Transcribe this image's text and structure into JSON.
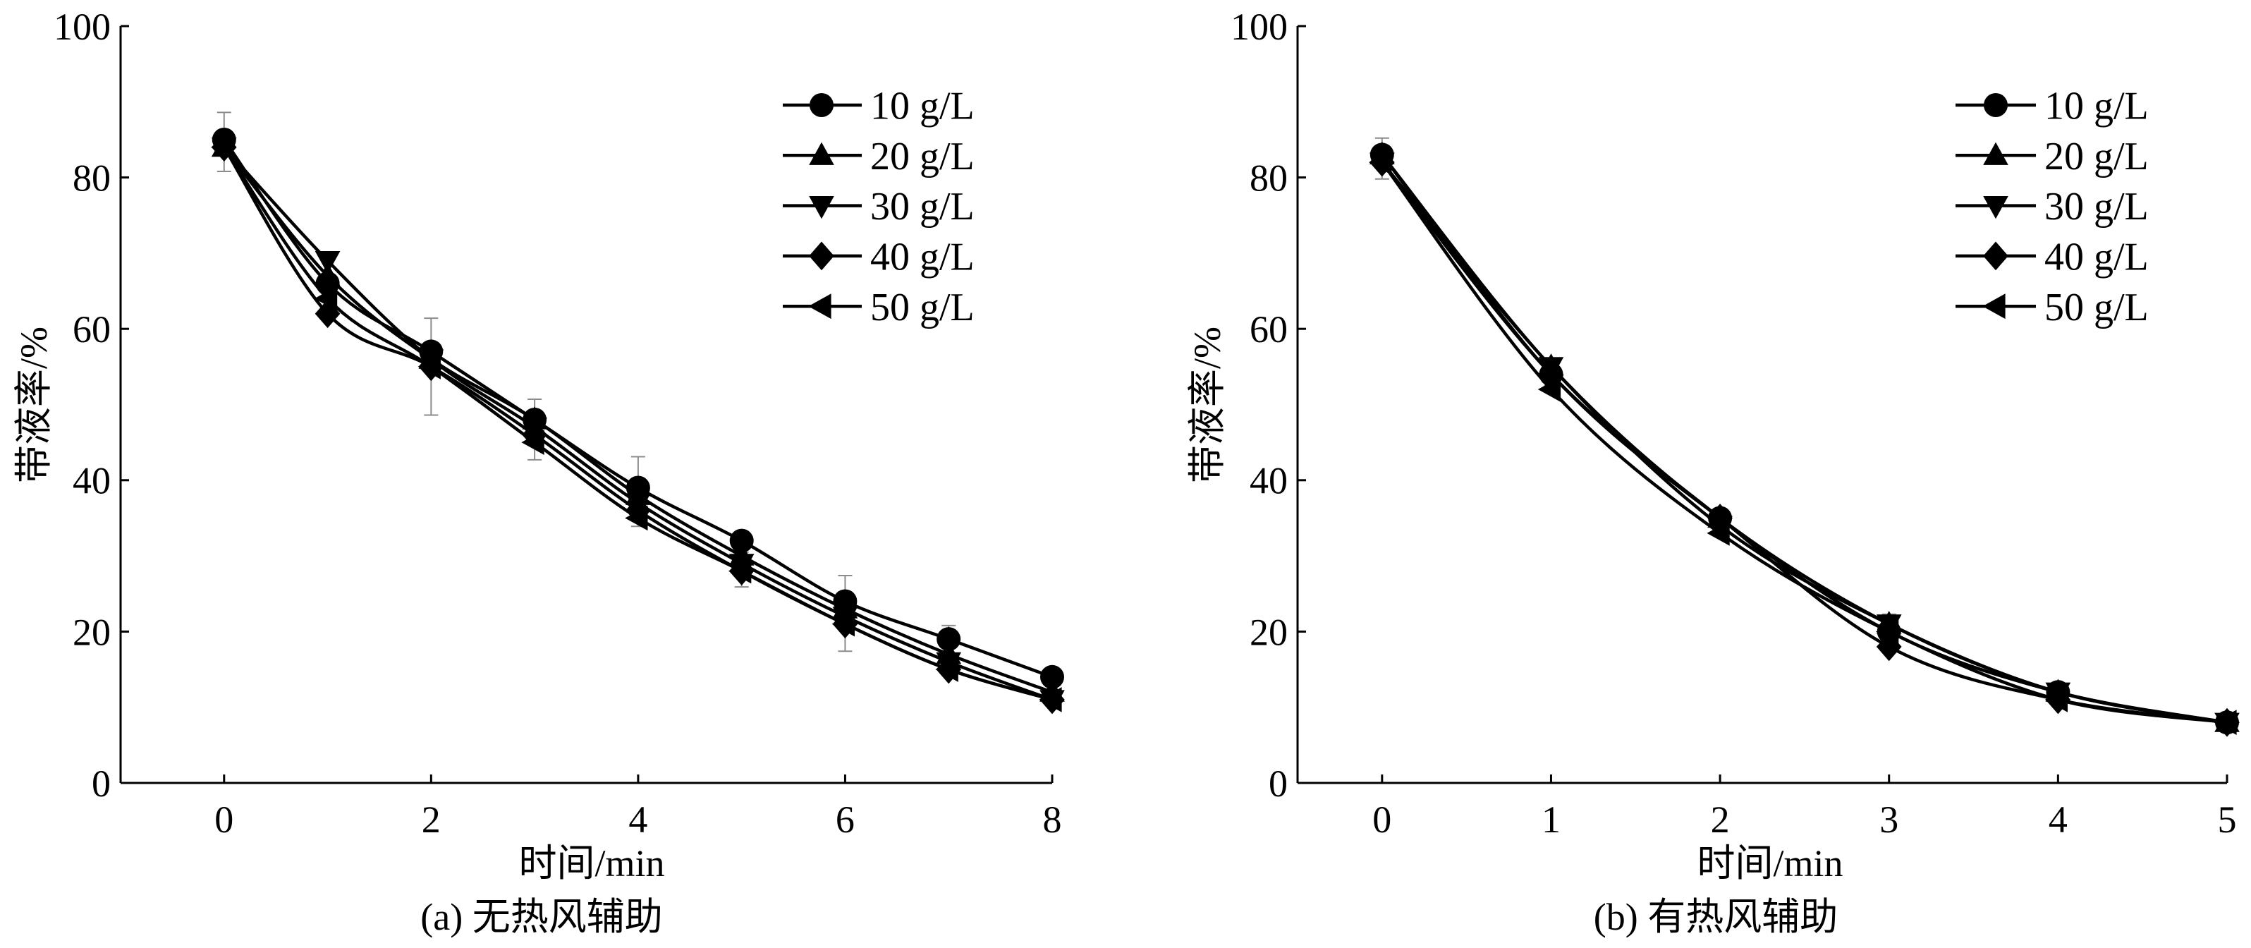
{
  "colors": {
    "line": "#000000",
    "marker": "#000000",
    "axis": "#000000",
    "error_bar": "#8c8c8c",
    "background": "#ffffff"
  },
  "chart_data": [
    {
      "type": "line",
      "caption": "(a) 无热风辅助",
      "xlabel": "时间/min",
      "ylabel": "带液率/%",
      "xlim": [
        -1,
        8
      ],
      "ylim": [
        0,
        100
      ],
      "xticks": [
        0,
        2,
        4,
        6,
        8
      ],
      "yticks": [
        0,
        20,
        40,
        60,
        80,
        100
      ],
      "grid": false,
      "legend": "top-right",
      "x": [
        0,
        1,
        2,
        3,
        4,
        5,
        6,
        7,
        8
      ],
      "series": [
        {
          "name": "10 g/L",
          "marker": "circle",
          "values": [
            85,
            66,
            57,
            48,
            39,
            32,
            24,
            19,
            14
          ]
        },
        {
          "name": "20 g/L",
          "marker": "triangle-up",
          "values": [
            84,
            67,
            56,
            48,
            38,
            30,
            23,
            17,
            12
          ]
        },
        {
          "name": "30 g/L",
          "marker": "triangle-down",
          "values": [
            84,
            69,
            56,
            47,
            37,
            29,
            22,
            16,
            11
          ]
        },
        {
          "name": "40 g/L",
          "marker": "diamond",
          "values": [
            84,
            62,
            55,
            46,
            36,
            28,
            21,
            15,
            11
          ]
        },
        {
          "name": "50 g/L",
          "marker": "triangle-left",
          "values": [
            84,
            64,
            55,
            45,
            35,
            28,
            21,
            15,
            11
          ]
        }
      ],
      "error_bars": [
        {
          "x": 0,
          "y": 84.7,
          "err": 3.9
        },
        {
          "x": 2,
          "y": 55.0,
          "err": 6.4
        },
        {
          "x": 3,
          "y": 46.7,
          "err": 4.0
        },
        {
          "x": 4,
          "y": 38.5,
          "err": 4.6
        },
        {
          "x": 5,
          "y": 28.2,
          "err": 2.3
        },
        {
          "x": 6,
          "y": 22.4,
          "err": 5.0
        },
        {
          "x": 7,
          "y": 17.6,
          "err": 3.2
        },
        {
          "x": 8,
          "y": 12.5,
          "err": 1.5
        }
      ]
    },
    {
      "type": "line",
      "caption": "(b) 有热风辅助",
      "xlabel": "时间/min",
      "ylabel": "带液率/%",
      "xlim": [
        -0.5,
        5
      ],
      "ylim": [
        0,
        100
      ],
      "xticks": [
        0,
        1,
        2,
        3,
        4,
        5
      ],
      "yticks": [
        0,
        20,
        40,
        60,
        80,
        100
      ],
      "grid": false,
      "legend": "top-right",
      "x": [
        0,
        1,
        2,
        3,
        4,
        5
      ],
      "series": [
        {
          "name": "10 g/L",
          "marker": "circle",
          "values": [
            83,
            54,
            35,
            20,
            12,
            8
          ]
        },
        {
          "name": "20 g/L",
          "marker": "triangle-up",
          "values": [
            83,
            55,
            35,
            21,
            12,
            8
          ]
        },
        {
          "name": "30 g/L",
          "marker": "triangle-down",
          "values": [
            82,
            55,
            34,
            21,
            12,
            8
          ]
        },
        {
          "name": "40 g/L",
          "marker": "diamond",
          "values": [
            82,
            54,
            35,
            18,
            11,
            8
          ]
        },
        {
          "name": "50 g/L",
          "marker": "triangle-left",
          "values": [
            82,
            52,
            33,
            20,
            11,
            8
          ]
        }
      ],
      "error_bars": [
        {
          "x": 0,
          "y": 82.5,
          "err": 2.7
        },
        {
          "x": 1,
          "y": 54.0,
          "err": 1.5
        },
        {
          "x": 2,
          "y": 34.0,
          "err": 1.2
        },
        {
          "x": 3,
          "y": 20.5,
          "err": 1.8
        },
        {
          "x": 4,
          "y": 11.5,
          "err": 1.0
        },
        {
          "x": 5,
          "y": 8.0,
          "err": 0.8
        }
      ]
    }
  ]
}
